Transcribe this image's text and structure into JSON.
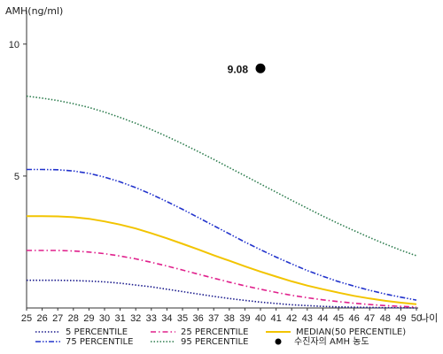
{
  "chart_data": {
    "type": "line",
    "ylabel": "AMH(ng/ml)",
    "xlabel": "나이",
    "x": [
      25,
      26,
      27,
      28,
      29,
      30,
      31,
      32,
      33,
      34,
      35,
      36,
      37,
      38,
      39,
      40,
      41,
      42,
      43,
      44,
      45,
      46,
      47,
      48,
      49,
      50
    ],
    "xlim": [
      25,
      50
    ],
    "ylim": [
      0,
      11
    ],
    "yticks": [
      5,
      10
    ],
    "series": [
      {
        "name": "5 PERCENTILE",
        "color": "#1a1a8c",
        "dash": "dotted",
        "values": [
          1.05,
          1.05,
          1.05,
          1.04,
          1.02,
          0.99,
          0.94,
          0.87,
          0.8,
          0.71,
          0.62,
          0.53,
          0.44,
          0.36,
          0.29,
          0.22,
          0.17,
          0.12,
          0.09,
          0.06,
          0.04,
          0.03,
          0.02,
          0.01,
          0.01,
          0.0
        ]
      },
      {
        "name": "25 PERCENTILE",
        "color": "#e0208c",
        "dash": "dashdot",
        "values": [
          2.18,
          2.18,
          2.18,
          2.16,
          2.12,
          2.06,
          1.97,
          1.86,
          1.73,
          1.59,
          1.44,
          1.28,
          1.13,
          0.98,
          0.84,
          0.71,
          0.59,
          0.48,
          0.39,
          0.31,
          0.24,
          0.18,
          0.13,
          0.09,
          0.06,
          0.04
        ]
      },
      {
        "name": "MEDIAN(50 PERCENTILE)",
        "color": "#f2c400",
        "dash": "solid",
        "values": [
          3.48,
          3.48,
          3.47,
          3.44,
          3.38,
          3.28,
          3.16,
          3.01,
          2.83,
          2.64,
          2.43,
          2.22,
          2.0,
          1.79,
          1.58,
          1.38,
          1.19,
          1.01,
          0.85,
          0.71,
          0.58,
          0.46,
          0.36,
          0.27,
          0.2,
          0.14
        ]
      },
      {
        "name": "75 PERCENTILE",
        "color": "#2233cc",
        "dash": "dashdotdot",
        "values": [
          5.25,
          5.25,
          5.24,
          5.19,
          5.1,
          4.96,
          4.78,
          4.56,
          4.31,
          4.03,
          3.74,
          3.43,
          3.12,
          2.81,
          2.5,
          2.21,
          1.93,
          1.67,
          1.42,
          1.2,
          1.0,
          0.83,
          0.67,
          0.53,
          0.41,
          0.3
        ]
      },
      {
        "name": "95 PERCENTILE",
        "color": "#2e7d4f",
        "dash": "dotted",
        "values": [
          8.03,
          7.95,
          7.86,
          7.74,
          7.6,
          7.42,
          7.22,
          7.0,
          6.76,
          6.5,
          6.22,
          5.93,
          5.63,
          5.32,
          5.01,
          4.7,
          4.39,
          4.08,
          3.78,
          3.48,
          3.2,
          2.93,
          2.67,
          2.42,
          2.19,
          1.98
        ]
      }
    ],
    "point": {
      "x": 40,
      "y": 9.08,
      "label": "9.08",
      "legend": "수진자의 AMH 농도"
    }
  }
}
